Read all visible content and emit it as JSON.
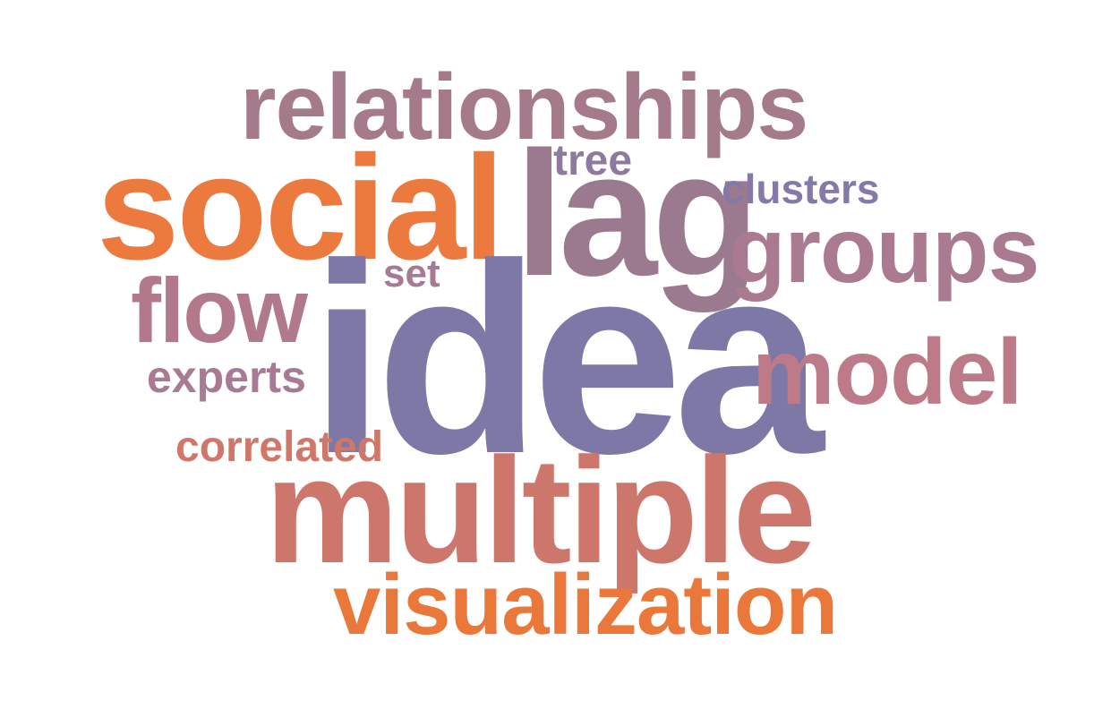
{
  "words": {
    "relationships": {
      "text": "relationships",
      "color": "#a57b8c"
    },
    "tree": {
      "text": "tree",
      "color": "#8f7a9f"
    },
    "social": {
      "text": "social",
      "color": "#ec7a3f"
    },
    "lag": {
      "text": "lag",
      "color": "#9b7a90"
    },
    "clusters": {
      "text": "clusters",
      "color": "#8579a8"
    },
    "groups": {
      "text": "groups",
      "color": "#aa7a90"
    },
    "set": {
      "text": "set",
      "color": "#a47a96"
    },
    "flow": {
      "text": "flow",
      "color": "#b2798a"
    },
    "idea": {
      "text": "idea",
      "color": "#7d78a6"
    },
    "experts": {
      "text": "experts",
      "color": "#a87a94"
    },
    "model": {
      "text": "model",
      "color": "#bd7a88"
    },
    "correlated": {
      "text": "correlated",
      "color": "#cf786a"
    },
    "multiple": {
      "text": "multiple",
      "color": "#cd776c"
    },
    "visualization": {
      "text": "visualization",
      "color": "#ea783b"
    }
  }
}
